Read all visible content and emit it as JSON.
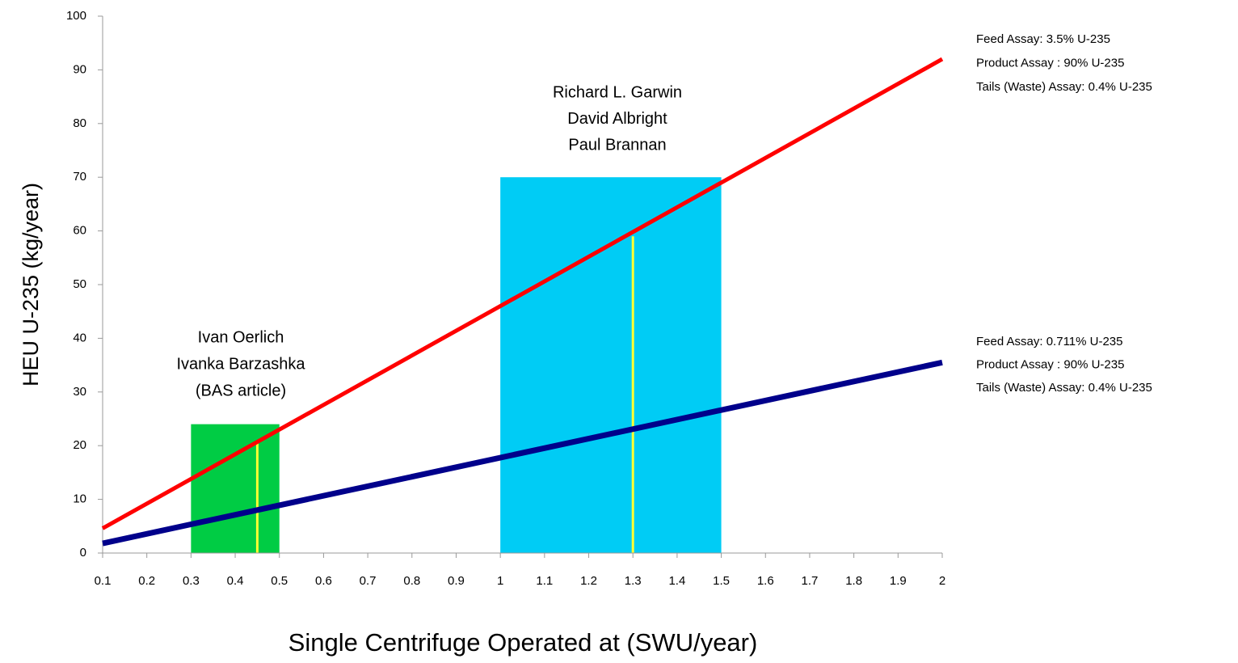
{
  "chart_data": {
    "type": "line",
    "xlabel": "Single Centrifuge Operated at (SWU/year)",
    "ylabel": "HEU U-235 (kg/year)",
    "xlim": [
      0.1,
      2
    ],
    "xticks": [
      0.1,
      0.2,
      0.3,
      0.4,
      0.5,
      0.6,
      0.7,
      0.8,
      0.9,
      1,
      1.1,
      1.2,
      1.3,
      1.4,
      1.5,
      1.6,
      1.7,
      1.8,
      1.9,
      2
    ],
    "ylim": [
      0,
      100
    ],
    "yticks": [
      0,
      10,
      20,
      30,
      40,
      50,
      60,
      70,
      80,
      90,
      100
    ],
    "grid": false,
    "series": [
      {
        "color": "#ff0000",
        "x": [
          0.1,
          2
        ],
        "values": [
          4.6,
          92
        ]
      },
      {
        "color": "#00008b",
        "x": [
          0.1,
          2
        ],
        "values": [
          1.8,
          35.5
        ]
      }
    ],
    "shaded_regions": [
      {
        "x0": 0.3,
        "x1": 0.5,
        "height": 24,
        "color": "#00cc44"
      },
      {
        "x0": 1,
        "x1": 1.5,
        "height": 70,
        "color": "#00ccf5"
      }
    ],
    "markers": [
      {
        "x": 0.45,
        "y": 21,
        "color": "#ffff33"
      },
      {
        "x": 1.3,
        "y": 59,
        "color": "#ffff33"
      }
    ],
    "annotations": [
      {
        "lines": [
          "Ivan Oerlich",
          "Ivanka Barzashka",
          "(BAS article)"
        ]
      },
      {
        "lines": [
          "Richard L. Garwin",
          "David Albright",
          "Paul Brannan"
        ]
      },
      {
        "lines": [
          "Feed Assay: 3.5% U-235",
          "Product Assay : 90% U-235",
          "Tails (Waste) Assay: 0.4% U-235"
        ]
      },
      {
        "lines": [
          "Feed Assay: 0.711% U-235",
          "Product Assay : 90% U-235",
          "Tails (Waste) Assay: 0.4% U-235"
        ]
      }
    ]
  }
}
